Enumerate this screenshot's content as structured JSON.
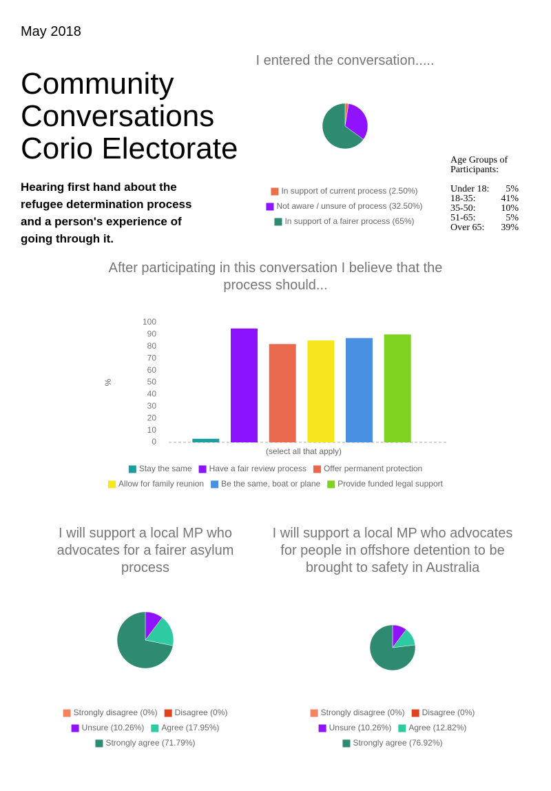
{
  "date": "May 2018",
  "title": [
    "Community",
    "Conversations",
    "Corio Electorate"
  ],
  "subtitle": [
    "Hearing first hand about the",
    "refugee determination process",
    "and a person's experience of",
    "going through it."
  ],
  "age_groups": {
    "heading": [
      "Age Groups of",
      "Participants:"
    ],
    "rows": [
      [
        "Under 18:",
        "5%"
      ],
      [
        "18-35:",
        "41%"
      ],
      [
        "35-50:",
        "10%"
      ],
      [
        "51-65:",
        "5%"
      ],
      [
        "Over 65:",
        "39%"
      ]
    ]
  },
  "chart_data": [
    {
      "type": "pie",
      "title": "I entered the conversation.....",
      "categories": [
        "In support of current process (2.50%)",
        "Not aware / unsure of process (32.50%)",
        "In support of a fairer process (65%)"
      ],
      "values": [
        2.5,
        32.5,
        65
      ],
      "colors": [
        "#e8704f",
        "#9013fe",
        "#2e8b72"
      ]
    },
    {
      "type": "bar",
      "title": "After participating in this conversation I believe that the process should...",
      "x_label": "(select all that apply)",
      "y_label": "%",
      "categories": [
        "Stay the same",
        "Have a fair review process",
        "Offer permanent protection",
        "Allow for family reunion",
        "Be the same, boat or plane",
        "Provide funded legal support"
      ],
      "values": [
        3,
        95,
        82,
        85,
        87,
        90
      ],
      "colors": [
        "#1a9e9e",
        "#8b13fe",
        "#e8694e",
        "#f7e61b",
        "#4a90e2",
        "#7ed321"
      ],
      "ylim": [
        0,
        100
      ],
      "yticks": [
        0,
        10,
        20,
        30,
        40,
        50,
        60,
        70,
        80,
        90,
        100
      ]
    },
    {
      "type": "pie",
      "title": "I will support a local MP who advocates for a fairer asylum process",
      "categories": [
        "Strongly disagree (0%)",
        "Disagree (0%)",
        "Unsure (10.26%)",
        "Agree (17.95%)",
        "Strongly agree (71.79%)"
      ],
      "values": [
        0,
        0,
        10.26,
        17.95,
        71.79
      ],
      "colors": [
        "#f4845f",
        "#e0411f",
        "#9013fe",
        "#2ecba3",
        "#2e8b72"
      ]
    },
    {
      "type": "pie",
      "title": "I will support a local MP who advocates for people in offshore detention to be brought to safety in Australia",
      "categories": [
        "Strongly disagree (0%)",
        "Disagree (0%)",
        "Unsure (10.26%)",
        "Agree (12.82%)",
        "Strongly agree (76.92%)"
      ],
      "values": [
        0,
        0,
        10.26,
        12.82,
        76.92
      ],
      "colors": [
        "#f4845f",
        "#e0411f",
        "#9013fe",
        "#2ecba3",
        "#2e8b72"
      ]
    }
  ]
}
